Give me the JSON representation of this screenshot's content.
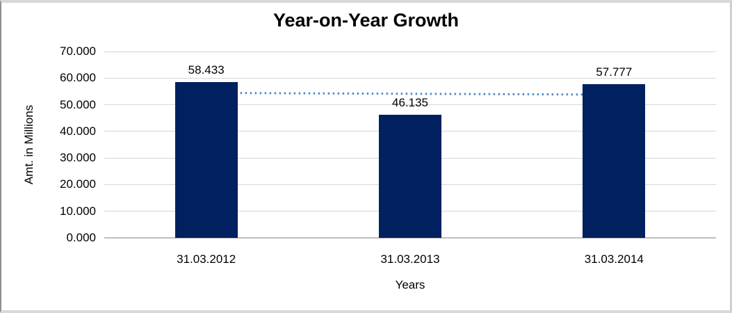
{
  "chart_data": {
    "type": "bar",
    "title": "Year-on-Year Growth",
    "categories": [
      "31.03.2012",
      "31.03.2013",
      "31.03.2014"
    ],
    "values": [
      58.433,
      46.135,
      57.777
    ],
    "value_labels": [
      "58.433",
      "46.135",
      "57.777"
    ],
    "xlabel": "Years",
    "ylabel": "Amt. in Millions",
    "ylim": [
      0,
      70
    ],
    "ytick_step": 10,
    "ytick_labels": [
      "0.000",
      "10.000",
      "20.000",
      "30.000",
      "40.000",
      "50.000",
      "60.000",
      "70.000"
    ],
    "grid": true,
    "legend_position": "none",
    "colors": {
      "bar": "#002060",
      "gridline": "#d6d6d6",
      "axis_line": "#c0c0c0",
      "text": "#000000"
    },
    "trendline": {
      "type": "linear",
      "style": "dotted",
      "color": "#4f8cc9"
    }
  }
}
